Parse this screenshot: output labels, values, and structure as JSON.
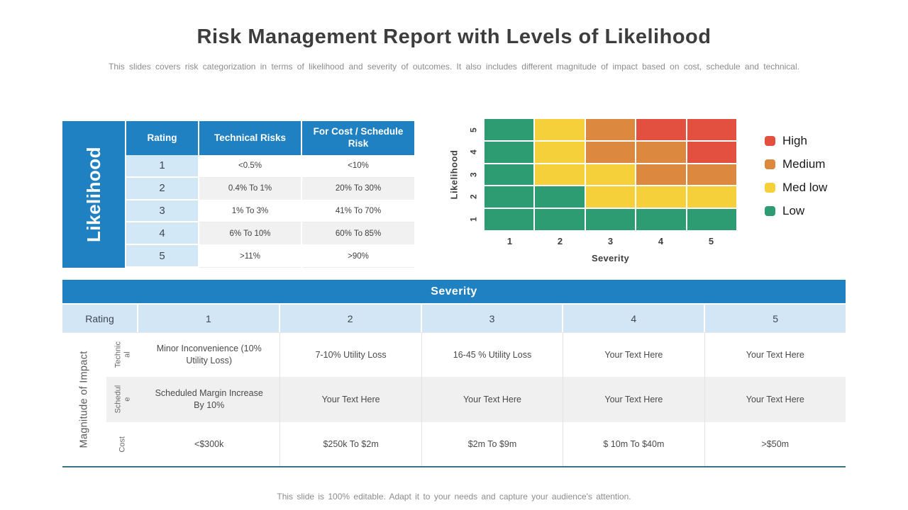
{
  "slide": {
    "title": "Risk Management Report with Levels of Likelihood",
    "subtitle": "This slides covers risk categorization in terms of likelihood and severity of outcomes. It also includes different magnitude of impact based on cost, schedule and technical.",
    "footer": "This slide is 100% editable. Adapt it to your needs and capture your audience's attention."
  },
  "likelihood_table": {
    "side_label": "Likelihood",
    "headers": [
      "Rating",
      "Technical Risks",
      "For Cost / Schedule Risk"
    ],
    "rows": [
      {
        "rating": "1",
        "technical": "<0.5%",
        "cost_schedule": "<10%"
      },
      {
        "rating": "2",
        "technical": "0.4% To 1%",
        "cost_schedule": "20% To 30%"
      },
      {
        "rating": "3",
        "technical": "1% To 3%",
        "cost_schedule": "41% To 70%"
      },
      {
        "rating": "4",
        "technical": "6% To 10%",
        "cost_schedule": "60% To 85%"
      },
      {
        "rating": "5",
        "technical": ">11%",
        "cost_schedule": ">90%"
      }
    ]
  },
  "chart_data": {
    "type": "heatmap",
    "xlabel": "Severity",
    "ylabel": "Likelihood",
    "x_ticks": [
      "1",
      "2",
      "3",
      "4",
      "5"
    ],
    "y_ticks": [
      "5",
      "4",
      "3",
      "2",
      "1"
    ],
    "levels": {
      "high": "#e3503f",
      "medium": "#dc883e",
      "med_low": "#f5d03a",
      "low": "#2e9c72"
    },
    "rows": [
      {
        "likelihood": "5",
        "cells": [
          "low",
          "med_low",
          "medium",
          "high",
          "high"
        ]
      },
      {
        "likelihood": "4",
        "cells": [
          "low",
          "med_low",
          "medium",
          "medium",
          "high"
        ]
      },
      {
        "likelihood": "3",
        "cells": [
          "low",
          "med_low",
          "med_low",
          "medium",
          "medium"
        ]
      },
      {
        "likelihood": "2",
        "cells": [
          "low",
          "low",
          "med_low",
          "med_low",
          "med_low"
        ]
      },
      {
        "likelihood": "1",
        "cells": [
          "low",
          "low",
          "low",
          "low",
          "low"
        ]
      }
    ],
    "legend": [
      {
        "label": "High",
        "color": "#e3503f"
      },
      {
        "label": "Medium",
        "color": "#dc883e"
      },
      {
        "label": "Med low",
        "color": "#f5d03a"
      },
      {
        "label": "Low",
        "color": "#2e9c72"
      }
    ],
    "grid": "on",
    "legend_position": "right"
  },
  "severity_table": {
    "header": "Severity",
    "rating_label": "Rating",
    "rating_values": [
      "1",
      "2",
      "3",
      "4",
      "5"
    ],
    "side_label": "Magnitude of Impact",
    "rows": [
      {
        "label": "Technical",
        "cells": [
          "Minor Inconvenience (10% Utility Loss)",
          "7-10% Utility Loss",
          "16-45 % Utility Loss",
          "Your Text Here",
          "Your Text Here"
        ]
      },
      {
        "label": "Schedule",
        "cells": [
          "Scheduled Margin Increase By 10%",
          "Your Text Here",
          "Your Text Here",
          "Your Text Here",
          "Your Text Here"
        ]
      },
      {
        "label": "Cost",
        "cells": [
          "<$300k",
          "$250k To $2m",
          "$2m To $9m",
          "$ 10m To $40m",
          ">$50m"
        ]
      }
    ]
  },
  "colors": {
    "accent_blue": "#1f81c1",
    "light_blue": "#d3e8f7",
    "stripe_gray": "#f0f0f0",
    "divider_teal": "#3a7184"
  }
}
